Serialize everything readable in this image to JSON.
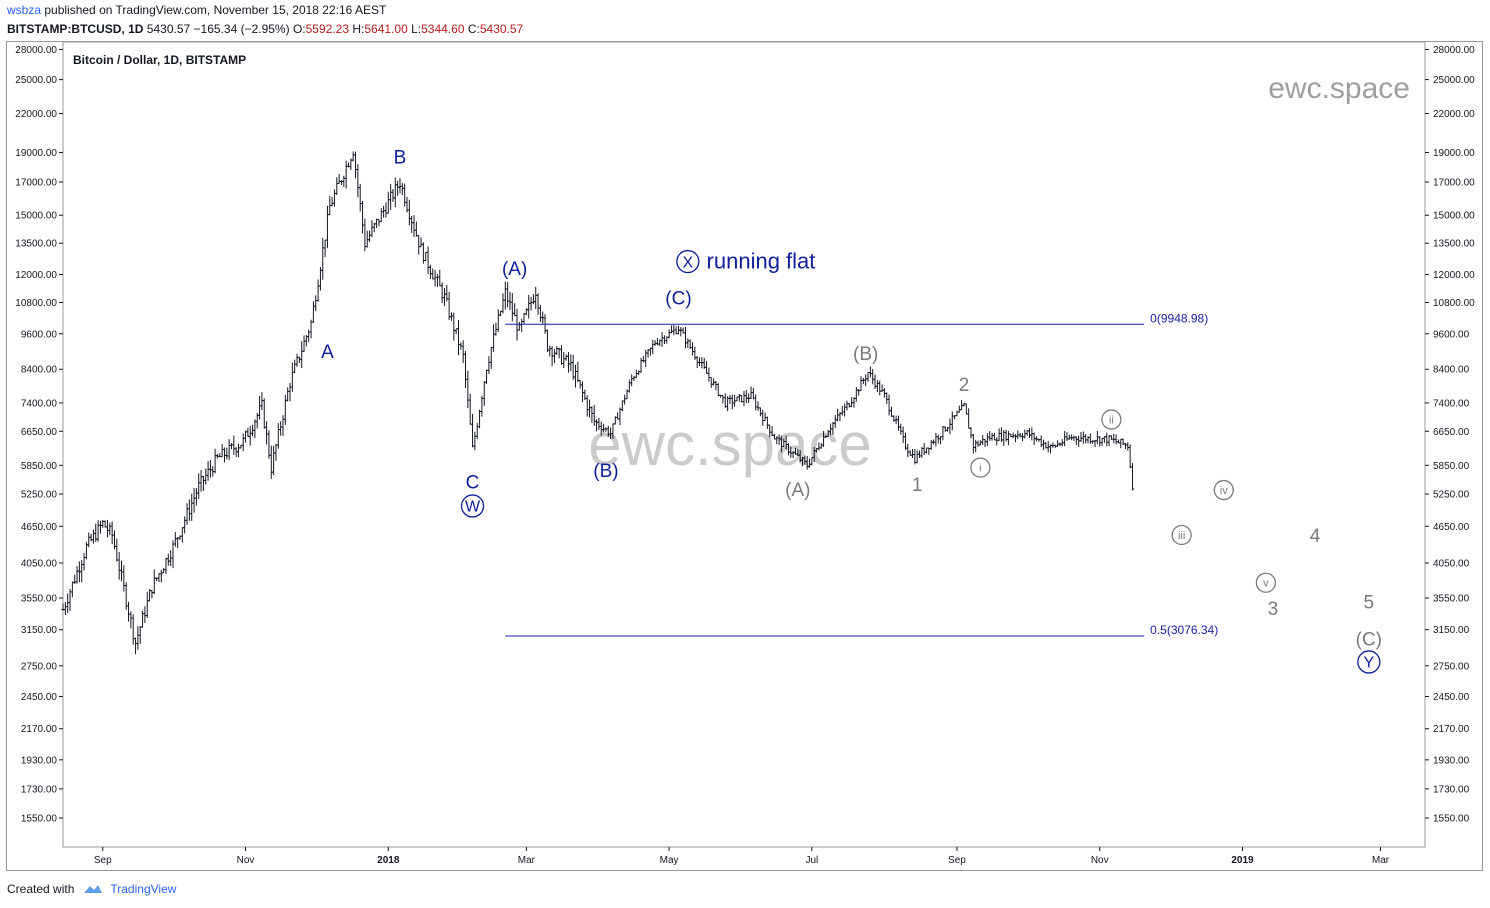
{
  "header": {
    "publisher": "wsbza",
    "published_text": "published on TradingView.com, November 15, 2018 22:16 AEST",
    "symbol": "BITSTAMP:BTCUSD, 1D",
    "last": "5430.57",
    "change": "−165.34 (−2.95%)",
    "o_label": "O:",
    "o_value": "5592.23",
    "h_label": "H:",
    "h_value": "5641.00",
    "l_label": "L:",
    "l_value": "5344.60",
    "c_label": "C:",
    "c_value": "5430.57"
  },
  "footer": {
    "created_with": "Created with",
    "brand": "TradingView"
  },
  "chart_data": {
    "type": "ohlc",
    "title": "Bitcoin / Dollar, 1D, BITSTAMP",
    "watermark": "ewc.space",
    "y_scale": "log",
    "ylim": [
      1390,
      28800
    ],
    "xlim": [
      "2017-08-15",
      "2019-03-20"
    ],
    "y_ticks": [
      28000,
      25000,
      22000,
      19000,
      17000,
      15000,
      13500,
      12000,
      10800,
      9600,
      8400,
      7400,
      6650,
      5850,
      5250,
      4650,
      4050,
      3550,
      3150,
      2750,
      2450,
      2170,
      1930,
      1730,
      1550
    ],
    "x_ticks": [
      {
        "date": "2017-09-01",
        "label": "Sep",
        "bold": false
      },
      {
        "date": "2017-11-01",
        "label": "Nov",
        "bold": false
      },
      {
        "date": "2018-01-01",
        "label": "2018",
        "bold": true
      },
      {
        "date": "2018-03-01",
        "label": "Mar",
        "bold": false
      },
      {
        "date": "2018-05-01",
        "label": "May",
        "bold": false
      },
      {
        "date": "2018-07-01",
        "label": "Jul",
        "bold": false
      },
      {
        "date": "2018-09-01",
        "label": "Sep",
        "bold": false
      },
      {
        "date": "2018-11-01",
        "label": "Nov",
        "bold": false
      },
      {
        "date": "2019-01-01",
        "label": "2019",
        "bold": true
      },
      {
        "date": "2019-03-01",
        "label": "Mar",
        "bold": false
      }
    ],
    "price_path": [
      [
        "2017-08-15",
        3400
      ],
      [
        "2017-08-25",
        4300
      ],
      [
        "2017-09-01",
        4700
      ],
      [
        "2017-09-05",
        4500
      ],
      [
        "2017-09-15",
        3000
      ],
      [
        "2017-09-22",
        3700
      ],
      [
        "2017-10-01",
        4300
      ],
      [
        "2017-10-12",
        5400
      ],
      [
        "2017-10-20",
        6000
      ],
      [
        "2017-10-31",
        6400
      ],
      [
        "2017-11-08",
        7300
      ],
      [
        "2017-11-12",
        5800
      ],
      [
        "2017-11-20",
        8000
      ],
      [
        "2017-11-29",
        10000
      ],
      [
        "2017-12-07",
        15500
      ],
      [
        "2017-12-17",
        19200
      ],
      [
        "2017-12-22",
        13500
      ],
      [
        "2018-01-06",
        17000
      ],
      [
        "2018-01-15",
        13200
      ],
      [
        "2018-01-25",
        11000
      ],
      [
        "2018-02-02",
        8800
      ],
      [
        "2018-02-06",
        6200
      ],
      [
        "2018-02-12",
        8500
      ],
      [
        "2018-02-20",
        11200
      ],
      [
        "2018-02-26",
        9700
      ],
      [
        "2018-03-05",
        11300
      ],
      [
        "2018-03-10",
        9200
      ],
      [
        "2018-03-20",
        8500
      ],
      [
        "2018-03-30",
        6900
      ],
      [
        "2018-04-06",
        6600
      ],
      [
        "2018-04-15",
        8100
      ],
      [
        "2018-04-25",
        9300
      ],
      [
        "2018-05-05",
        9800
      ],
      [
        "2018-05-15",
        8500
      ],
      [
        "2018-05-25",
        7400
      ],
      [
        "2018-06-05",
        7600
      ],
      [
        "2018-06-15",
        6500
      ],
      [
        "2018-06-29",
        5850
      ],
      [
        "2018-07-08",
        6700
      ],
      [
        "2018-07-17",
        7400
      ],
      [
        "2018-07-25",
        8300
      ],
      [
        "2018-08-01",
        7600
      ],
      [
        "2018-08-10",
        6300
      ],
      [
        "2018-08-14",
        6000
      ],
      [
        "2018-08-25",
        6600
      ],
      [
        "2018-09-04",
        7300
      ],
      [
        "2018-09-08",
        6300
      ],
      [
        "2018-09-15",
        6500
      ],
      [
        "2018-10-01",
        6600
      ],
      [
        "2018-10-11",
        6250
      ],
      [
        "2018-10-20",
        6500
      ],
      [
        "2018-11-05",
        6450
      ],
      [
        "2018-11-13",
        6300
      ],
      [
        "2018-11-15",
        5430
      ]
    ],
    "fib_levels": [
      {
        "label": "0(9948.98)",
        "price": 9948.98,
        "from": "2018-02-20",
        "to": "2018-11-20"
      },
      {
        "label": "0.5(3076.34)",
        "price": 3076.34,
        "from": "2018-02-20",
        "to": "2018-11-20"
      }
    ],
    "annotations": [
      {
        "text": "A",
        "date": "2017-12-06",
        "price": 9000,
        "color": "#0d1e9a",
        "style": "plain"
      },
      {
        "text": "B",
        "date": "2018-01-06",
        "price": 18700,
        "color": "#0d1e9a",
        "style": "plain"
      },
      {
        "text": "C",
        "date": "2018-02-06",
        "price": 5500,
        "color": "#0d1e9a",
        "style": "plain"
      },
      {
        "text": "W",
        "date": "2018-02-06",
        "price": 5020,
        "color": "#0d1e9a",
        "style": "circle"
      },
      {
        "text": "(A)",
        "date": "2018-02-24",
        "price": 12300,
        "color": "#0d1e9a",
        "style": "plain"
      },
      {
        "text": "(B)",
        "date": "2018-04-04",
        "price": 5750,
        "color": "#0d1e9a",
        "style": "plain"
      },
      {
        "text": "(C)",
        "date": "2018-05-05",
        "price": 11000,
        "color": "#0d1e9a",
        "style": "plain"
      },
      {
        "text": "X",
        "date": "2018-05-09",
        "price": 12600,
        "color": "#0d1e9a",
        "style": "circle"
      },
      {
        "text": "running flat",
        "date": "2018-05-17",
        "price": 12600,
        "color": "#0d1e9a",
        "style": "plain-left",
        "size": 22
      },
      {
        "text": "(A)",
        "date": "2018-06-25",
        "price": 5350,
        "color": "#7a7a7a",
        "style": "plain"
      },
      {
        "text": "(B)",
        "date": "2018-07-24",
        "price": 8930,
        "color": "#7a7a7a",
        "style": "plain"
      },
      {
        "text": "1",
        "date": "2018-08-15",
        "price": 5450,
        "color": "#7a7a7a",
        "style": "plain"
      },
      {
        "text": "2",
        "date": "2018-09-04",
        "price": 7950,
        "color": "#7a7a7a",
        "style": "plain"
      },
      {
        "text": "i",
        "date": "2018-09-11",
        "price": 5800,
        "color": "#7a7a7a",
        "style": "circle"
      },
      {
        "text": "ii",
        "date": "2018-11-06",
        "price": 6950,
        "color": "#7a7a7a",
        "style": "circle"
      },
      {
        "text": "iii",
        "date": "2018-12-06",
        "price": 4500,
        "color": "#7a7a7a",
        "style": "circle"
      },
      {
        "text": "iv",
        "date": "2018-12-24",
        "price": 5330,
        "color": "#7a7a7a",
        "style": "circle"
      },
      {
        "text": "v",
        "date": "2019-01-11",
        "price": 3760,
        "color": "#7a7a7a",
        "style": "circle"
      },
      {
        "text": "3",
        "date": "2019-01-14",
        "price": 3420,
        "color": "#7a7a7a",
        "style": "plain"
      },
      {
        "text": "4",
        "date": "2019-02-01",
        "price": 4500,
        "color": "#7a7a7a",
        "style": "plain"
      },
      {
        "text": "5",
        "date": "2019-02-24",
        "price": 3500,
        "color": "#7a7a7a",
        "style": "plain"
      },
      {
        "text": "(C)",
        "date": "2019-02-24",
        "price": 3050,
        "color": "#7a7a7a",
        "style": "plain"
      },
      {
        "text": "Y",
        "date": "2019-02-24",
        "price": 2790,
        "color": "#0d1e9a",
        "style": "circle"
      }
    ]
  }
}
